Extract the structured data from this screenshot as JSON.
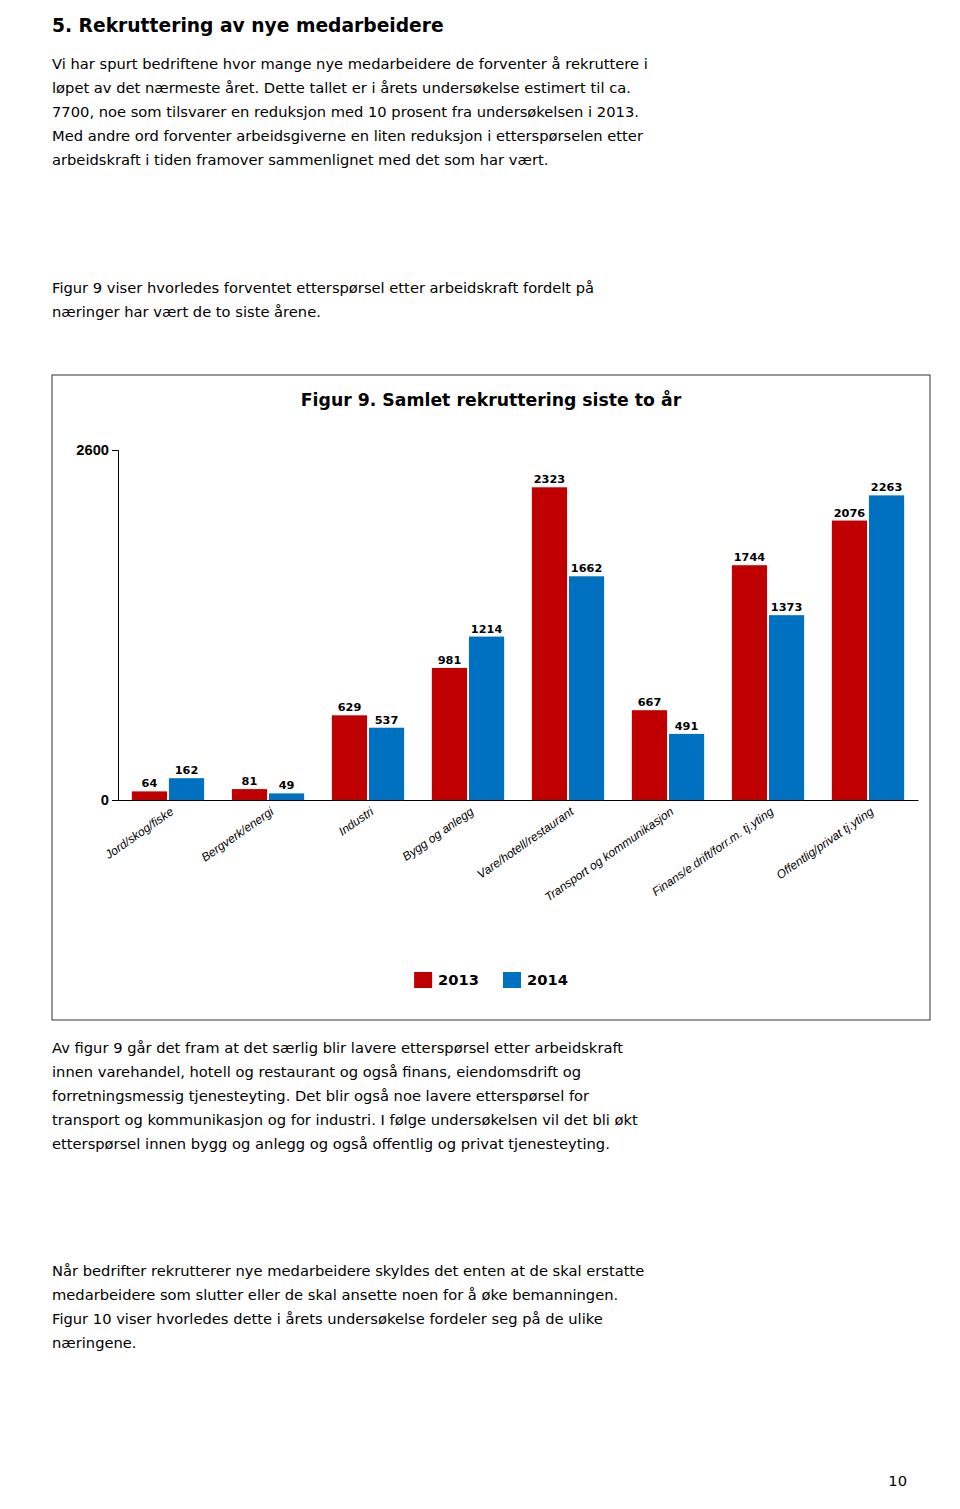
{
  "title": "5. Rekruttering av nye medarbeidere",
  "paragraphs_before": [
    [
      "Vi har spurt bedriftene hvor mange nye medarbeidere de forventer å rekruttere i",
      "løpet av det nærmeste året. Dette tallet er i årets undersøkelse estimert til ca.",
      "7700, noe som tilsvarer en reduksjon med 10 prosent fra undersøkelsen i 2013.",
      "Med andre ord forventer arbeidsgiverne en liten reduksjon i etterspørselen etter",
      "arbeidskraft i tiden framover sammenlignet med det som har vært."
    ],
    [
      "Figur 9 viser hvorledes forventet etterspørsel etter arbeidskraft fordelt på",
      "næringer har vært de to siste årene."
    ]
  ],
  "paragraphs_after": [
    [
      "Av figur 9 går det fram at det særlig blir lavere etterspørsel etter arbeidskraft",
      "innen varehandel, hotell og restaurant og også finans, eiendomsdrift og",
      "forretningsmessig tjenesteyting. Det blir også noe lavere etterspørsel for",
      "transport og kommunikasjon og for industri. I følge undersøkelsen vil det bli økt",
      "etterspørsel innen bygg og anlegg og også offentlig og privat tjenesteyting."
    ],
    [
      "Når bedrifter rekrutterer nye medarbeidere skyldes det enten at de skal erstatte",
      "medarbeidere som slutter eller de skal ansette noen for å øke bemanningen.",
      "Figur 10 viser hvorledes dette i årets undersøkelse fordeler seg på de ulike",
      "næringene."
    ]
  ],
  "page_number": "10",
  "chart_data": {
    "type": "bar",
    "title": "Figur 9. Samlet rekruttering siste to år",
    "categories": [
      "Jord/skog/fiske",
      "Bergverk/energi",
      "Industri",
      "Bygg og anlegg",
      "Vare/hotell/restaurant",
      "Transport og kommunikasjon",
      "Finans/e.drift/forr.m. tj.yting",
      "Offentlig/privat tj.yting"
    ],
    "series": [
      {
        "name": "2013",
        "color": "#C00000",
        "values": [
          64,
          81,
          629,
          981,
          2323,
          667,
          1744,
          2076
        ]
      },
      {
        "name": "2014",
        "color": "#0070C0",
        "values": [
          162,
          49,
          537,
          1214,
          1662,
          491,
          1373,
          2263
        ]
      }
    ],
    "ylim": [
      0,
      2600
    ],
    "yticks": [
      0,
      2600
    ],
    "grid": false,
    "legend": "bottom",
    "data_labels": true
  }
}
